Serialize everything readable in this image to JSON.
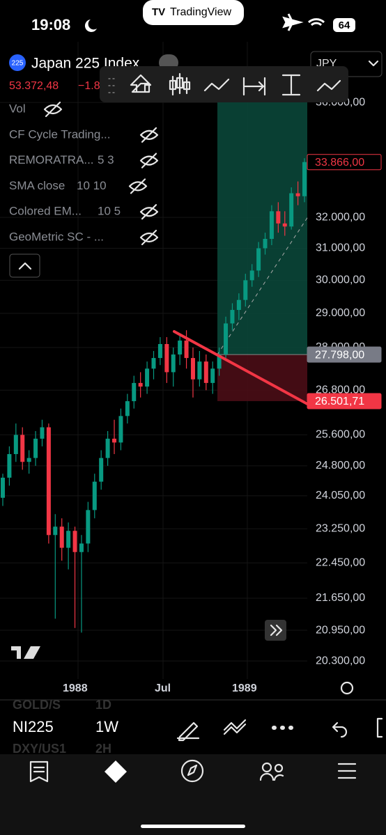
{
  "status": {
    "time": "19:08",
    "battery": "64",
    "banner": "TradingView"
  },
  "symbol": {
    "badge": "225",
    "title": "Japan 225 Index",
    "price": "53.372,48",
    "change": "−1.8",
    "currency": "JPY"
  },
  "indicators": [
    {
      "name": "Vol"
    },
    {
      "name": "CF Cycle Trading..."
    },
    {
      "name": "REMORATRA...",
      "params": "5 3"
    },
    {
      "name": "SMA close",
      "params": "10 10"
    },
    {
      "name": "Colored EM...",
      "params": "10 5"
    },
    {
      "name": "GeoMetric SC - ..."
    }
  ],
  "chart": {
    "scale": "log",
    "ylim": [
      20000,
      38000
    ],
    "yticks": [
      {
        "value": 36000,
        "label": "36.000,00"
      },
      {
        "value": 32000,
        "label": "32.000,00"
      },
      {
        "value": 31000,
        "label": "31.000,00"
      },
      {
        "value": 30000,
        "label": "30.000,00"
      },
      {
        "value": 29000,
        "label": "29.000,00"
      },
      {
        "value": 28000,
        "label": "28.000,00"
      },
      {
        "value": 26800,
        "label": "26.800,00"
      },
      {
        "value": 25600,
        "label": "25.600,00"
      },
      {
        "value": 24800,
        "label": "24.800,00"
      },
      {
        "value": 24050,
        "label": "24.050,00"
      },
      {
        "value": 23250,
        "label": "23.250,00"
      },
      {
        "value": 22450,
        "label": "22.450,00"
      },
      {
        "value": 21650,
        "label": "21.650,00"
      },
      {
        "value": 20950,
        "label": "20.950,00"
      },
      {
        "value": 20300,
        "label": "20.300,00"
      }
    ],
    "xticks": [
      "1988",
      "Jul",
      "1989"
    ],
    "up_color": "#089981",
    "down_color": "#f23645",
    "last": {
      "value": 33866,
      "label": "33.866,00"
    },
    "entry": {
      "value": 27798,
      "label": "27.798,00"
    },
    "stop": {
      "value": 26501.71,
      "label": "26.501,71"
    },
    "candles": [
      [
        24000,
        24600,
        23800,
        24500
      ],
      [
        24500,
        25300,
        24300,
        25100
      ],
      [
        25100,
        25900,
        24900,
        25600
      ],
      [
        25600,
        25800,
        24700,
        24900
      ],
      [
        24900,
        25200,
        24600,
        25000
      ],
      [
        25000,
        25700,
        24800,
        25500
      ],
      [
        25500,
        26000,
        25300,
        25800
      ],
      [
        25800,
        25900,
        22900,
        23100
      ],
      [
        23100,
        23600,
        21200,
        23300
      ],
      [
        23300,
        23500,
        22500,
        22800
      ],
      [
        22800,
        23400,
        22300,
        23200
      ],
      [
        23200,
        23300,
        21000,
        22700
      ],
      [
        22700,
        23100,
        20900,
        22900
      ],
      [
        22900,
        23900,
        22700,
        23700
      ],
      [
        23700,
        24600,
        23500,
        24400
      ],
      [
        24400,
        25200,
        24200,
        25000
      ],
      [
        25000,
        25700,
        24800,
        25500
      ],
      [
        25500,
        26000,
        25100,
        25400
      ],
      [
        25400,
        26300,
        25200,
        26100
      ],
      [
        26100,
        26700,
        25900,
        26500
      ],
      [
        26500,
        27200,
        26300,
        27000
      ],
      [
        27000,
        27300,
        26600,
        26900
      ],
      [
        26900,
        27600,
        26700,
        27400
      ],
      [
        27400,
        27900,
        27100,
        27700
      ],
      [
        27700,
        28300,
        27500,
        28100
      ],
      [
        28100,
        28300,
        27000,
        27300
      ],
      [
        27300,
        28000,
        26900,
        27800
      ],
      [
        27800,
        28400,
        27500,
        28200
      ],
      [
        28200,
        28500,
        27400,
        27700
      ],
      [
        27700,
        28000,
        26600,
        27100
      ],
      [
        27100,
        27900,
        26900,
        27600
      ],
      [
        27600,
        27800,
        26800,
        27000
      ],
      [
        27000,
        27600,
        26700,
        27400
      ],
      [
        27400,
        28000,
        27200,
        27800
      ],
      [
        27800,
        28900,
        27700,
        28700
      ],
      [
        28700,
        29300,
        28500,
        29100
      ],
      [
        29100,
        29600,
        28800,
        29400
      ],
      [
        29400,
        30200,
        29200,
        30000
      ],
      [
        30000,
        30500,
        29800,
        30300
      ],
      [
        30300,
        31200,
        30100,
        31000
      ],
      [
        31000,
        31500,
        30800,
        31300
      ],
      [
        31300,
        32400,
        31100,
        32200
      ],
      [
        32200,
        32500,
        31500,
        31800
      ],
      [
        31800,
        32200,
        31400,
        31700
      ],
      [
        31700,
        33000,
        31600,
        32800
      ],
      [
        32800,
        33200,
        32400,
        32700
      ],
      [
        32700,
        34000,
        32500,
        33866
      ]
    ]
  },
  "footer": {
    "rows": [
      {
        "symbol": "GOLD/S",
        "interval": "1D"
      },
      {
        "symbol": "NI225",
        "interval": "1W"
      },
      {
        "symbol": "DXY/US1",
        "interval": "2H"
      }
    ],
    "nav": [
      "Watchlist",
      "Chart",
      "Erforschen",
      "Community",
      "Menü"
    ]
  }
}
